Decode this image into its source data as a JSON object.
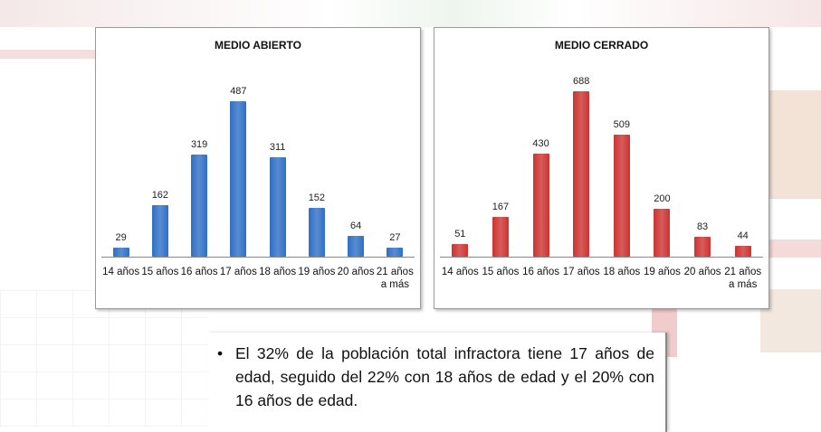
{
  "chart_data": [
    {
      "type": "bar",
      "title": "MEDIO ABIERTO",
      "color": "#2f6fc6",
      "categories": [
        "14 años",
        "15 años",
        "16 años",
        "17 años",
        "18 años",
        "19 años",
        "20 años",
        "21 años a más"
      ],
      "values": [
        29,
        162,
        319,
        487,
        311,
        152,
        64,
        27
      ]
    },
    {
      "type": "bar",
      "title": "MEDIO CERRADO",
      "color": "#cc3330",
      "categories": [
        "14 años",
        "15 años",
        "16 años",
        "17 años",
        "18 años",
        "19 años",
        "20 años",
        "21 años a más"
      ],
      "values": [
        51,
        167,
        430,
        688,
        509,
        200,
        83,
        44
      ]
    }
  ],
  "bullet_text": "El 32% de la población total infractora tiene 17 años de edad, seguido del 22% con 18 años de edad y el 20% con 16 años de edad."
}
